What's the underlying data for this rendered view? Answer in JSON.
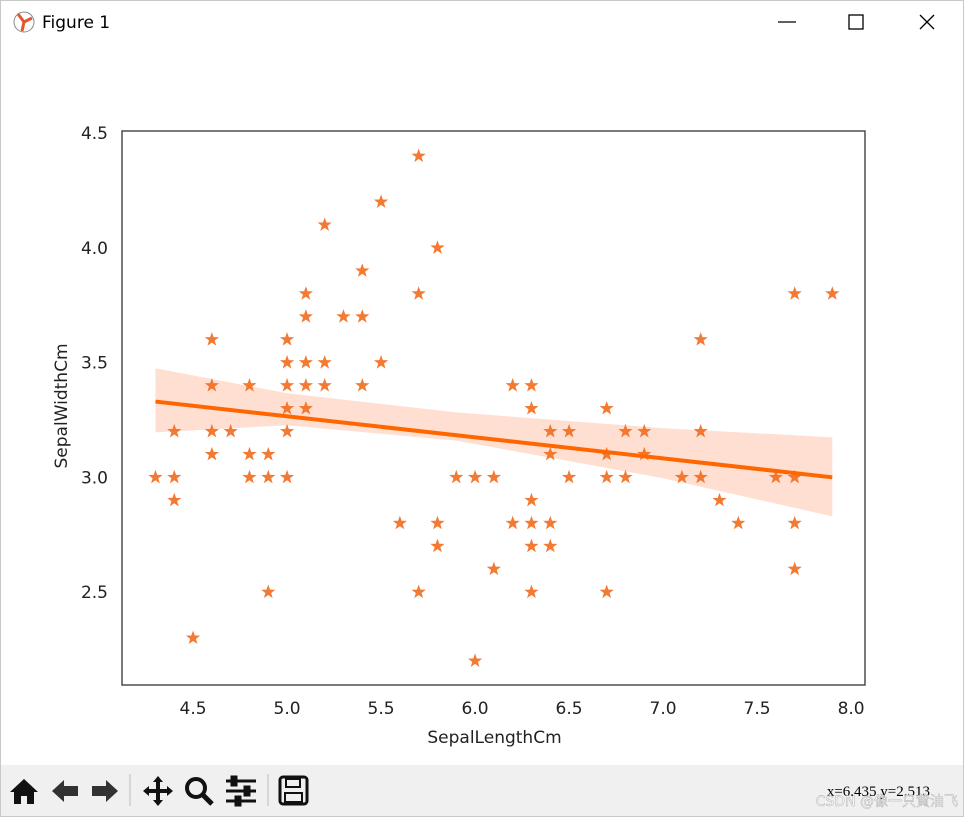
{
  "window": {
    "title": "Figure 1",
    "status": "x=6.435 y=2.513"
  },
  "watermark": "CSDN @像一只黄油飞",
  "chart_data": {
    "type": "scatter",
    "xlabel": "SepalLengthCm",
    "ylabel": "SepalWidthCm",
    "color": "#f26b1d",
    "marker": "star",
    "grid": false,
    "x": [
      4.3,
      4.4,
      4.4,
      4.4,
      4.5,
      4.6,
      4.6,
      4.6,
      4.6,
      4.7,
      4.8,
      4.8,
      4.8,
      4.9,
      4.9,
      4.9,
      5.0,
      5.0,
      5.0,
      5.0,
      5.0,
      5.0,
      5.1,
      5.1,
      5.1,
      5.1,
      5.1,
      5.2,
      5.2,
      5.2,
      5.3,
      5.4,
      5.4,
      5.4,
      5.5,
      5.5,
      5.6,
      5.7,
      5.7,
      5.7,
      5.8,
      5.8,
      5.8,
      5.9,
      6.0,
      6.0,
      6.1,
      6.1,
      6.2,
      6.2,
      6.3,
      6.3,
      6.3,
      6.3,
      6.3,
      6.3,
      6.4,
      6.4,
      6.4,
      6.4,
      6.5,
      6.5,
      6.7,
      6.7,
      6.7,
      6.7,
      6.8,
      6.8,
      6.9,
      6.9,
      7.1,
      7.2,
      7.2,
      7.2,
      7.3,
      7.4,
      7.6,
      7.7,
      7.7,
      7.7,
      7.7,
      7.9
    ],
    "values": [
      3.0,
      3.0,
      2.9,
      3.2,
      2.3,
      3.1,
      3.2,
      3.4,
      3.6,
      3.2,
      3.0,
      3.1,
      3.4,
      3.0,
      3.1,
      2.5,
      3.0,
      3.2,
      3.3,
      3.4,
      3.5,
      3.6,
      3.3,
      3.4,
      3.5,
      3.7,
      3.8,
      3.4,
      3.5,
      4.1,
      3.7,
      3.4,
      3.7,
      3.9,
      3.5,
      4.2,
      2.8,
      2.5,
      3.8,
      4.4,
      2.7,
      2.8,
      4.0,
      3.0,
      2.2,
      3.0,
      2.6,
      3.0,
      2.8,
      3.4,
      2.5,
      2.7,
      2.8,
      2.9,
      3.3,
      3.4,
      2.7,
      2.8,
      3.1,
      3.2,
      3.0,
      3.2,
      2.5,
      3.0,
      3.1,
      3.3,
      3.0,
      3.2,
      3.1,
      3.2,
      3.0,
      3.0,
      3.2,
      3.6,
      2.9,
      2.8,
      3.0,
      2.6,
      2.8,
      3.0,
      3.8,
      3.8
    ],
    "fit": {
      "color": "#ff6600",
      "x": [
        4.3,
        7.9
      ],
      "values": [
        3.33,
        3.0
      ]
    },
    "band": {
      "color": "#ffdccc",
      "x": [
        4.3,
        5.0,
        5.9,
        7.0,
        7.9
      ],
      "upper": [
        3.475,
        3.366,
        3.283,
        3.214,
        3.174
      ],
      "lower": [
        3.196,
        3.227,
        3.16,
        2.996,
        2.83
      ]
    },
    "xlim": [
      4.122,
      8.074
    ],
    "ylim": [
      2.095,
      4.509
    ],
    "xticks": [
      4.5,
      {
        "value": 5,
        "label": "5.0"
      },
      5.5,
      {
        "value": 6,
        "label": "6.0"
      },
      6.5,
      {
        "value": 7,
        "label": "7.0"
      },
      7.5,
      {
        "value": 8,
        "label": "8.0"
      }
    ],
    "yticks": [
      2.5,
      {
        "value": 3,
        "label": "3.0"
      },
      3.5,
      {
        "value": 4,
        "label": "4.0"
      },
      4.5
    ]
  }
}
